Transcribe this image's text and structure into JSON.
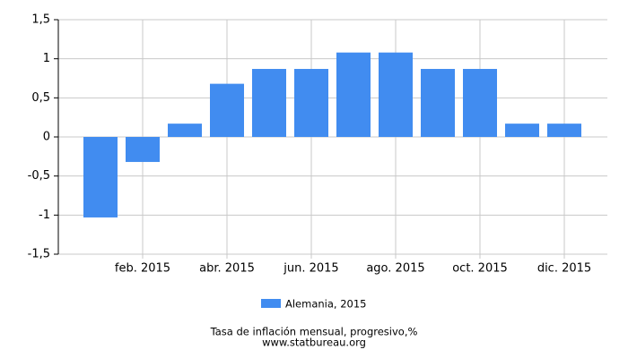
{
  "chart_data": {
    "type": "bar",
    "title": "Tasa de inflación mensual, progresivo,%",
    "source": "www.statbureau.org",
    "categories": [
      null,
      "feb. 2015",
      null,
      "abr. 2015",
      null,
      "jun. 2015",
      null,
      "ago. 2015",
      null,
      "oct. 2015",
      null,
      "dic. 2015"
    ],
    "series": [
      {
        "name": "Alemania, 2015",
        "color": "#418cf0",
        "values": [
          -1.03,
          -0.32,
          0.17,
          0.68,
          0.87,
          0.87,
          1.08,
          1.08,
          0.87,
          0.87,
          0.17,
          0.17
        ]
      }
    ],
    "ylim": [
      -1.5,
      1.5
    ],
    "yticks": [
      {
        "value": 1.5,
        "label": "1,5"
      },
      1,
      {
        "value": 0.5,
        "label": "0,5"
      },
      0,
      {
        "value": -0.5,
        "label": "-0,5"
      },
      -1,
      {
        "value": -1.5,
        "label": "-1,5"
      }
    ],
    "grid": true
  }
}
